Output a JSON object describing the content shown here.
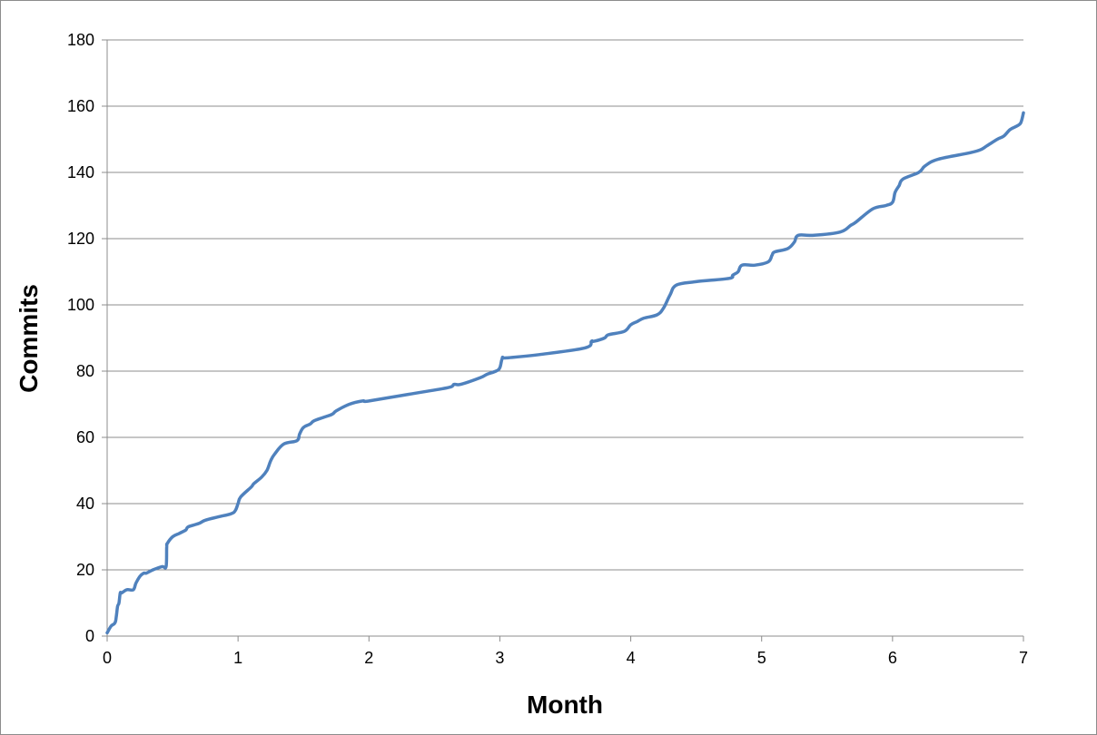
{
  "chart_data": {
    "type": "line",
    "title": "",
    "xlabel": "Month",
    "ylabel": "Commits",
    "xlim": [
      0,
      7
    ],
    "ylim": [
      0,
      180
    ],
    "x_ticks": [
      0,
      1,
      2,
      3,
      4,
      5,
      6,
      7
    ],
    "y_ticks": [
      0,
      20,
      40,
      60,
      80,
      100,
      120,
      140,
      160,
      180
    ],
    "grid": "horizontal",
    "legend": "none",
    "series": [
      {
        "color": "#4f81bd",
        "x": [
          0.0,
          0.03,
          0.06,
          0.07,
          0.08,
          0.09,
          0.1,
          0.11,
          0.15,
          0.2,
          0.22,
          0.25,
          0.28,
          0.3,
          0.35,
          0.42,
          0.45,
          0.455,
          0.46,
          0.5,
          0.55,
          0.6,
          0.62,
          0.7,
          0.75,
          0.85,
          0.95,
          0.98,
          1.0,
          1.02,
          1.1,
          1.12,
          1.18,
          1.22,
          1.25,
          1.28,
          1.35,
          1.45,
          1.47,
          1.5,
          1.55,
          1.58,
          1.65,
          1.72,
          1.75,
          1.85,
          1.95,
          2.0,
          2.3,
          2.6,
          2.65,
          2.7,
          2.85,
          2.9,
          2.97,
          3.0,
          3.02,
          3.05,
          3.3,
          3.65,
          3.7,
          3.72,
          3.8,
          3.83,
          3.95,
          4.0,
          4.05,
          4.1,
          4.2,
          4.25,
          4.3,
          4.35,
          4.5,
          4.75,
          4.78,
          4.82,
          4.85,
          4.95,
          5.05,
          5.08,
          5.1,
          5.2,
          5.25,
          5.28,
          5.4,
          5.6,
          5.68,
          5.72,
          5.85,
          5.95,
          6.0,
          6.02,
          6.05,
          6.08,
          6.2,
          6.25,
          6.35,
          6.6,
          6.68,
          6.72,
          6.8,
          6.85,
          6.9,
          6.95,
          6.98,
          7.0
        ],
        "y": [
          1,
          3,
          4,
          6,
          9,
          10,
          13,
          13,
          14,
          14,
          16,
          18,
          19,
          19,
          20,
          21,
          21,
          27,
          28,
          30,
          31,
          32,
          33,
          34,
          35,
          36,
          37,
          38,
          40,
          42,
          45,
          46,
          48,
          50,
          53,
          55,
          58,
          59,
          61,
          63,
          64,
          65,
          66,
          67,
          68,
          70,
          71,
          71,
          73,
          75,
          76,
          76,
          78,
          79,
          80,
          81,
          84,
          84,
          85,
          87,
          89,
          89,
          90,
          91,
          92,
          94,
          95,
          96,
          97,
          99,
          103,
          106,
          107,
          108,
          109,
          110,
          112,
          112,
          113,
          115,
          116,
          117,
          119,
          121,
          121,
          122,
          124,
          125,
          129,
          130,
          131,
          134,
          136,
          138,
          140,
          142,
          144,
          146,
          147,
          148,
          150,
          151,
          153,
          154,
          155,
          158
        ]
      }
    ]
  }
}
